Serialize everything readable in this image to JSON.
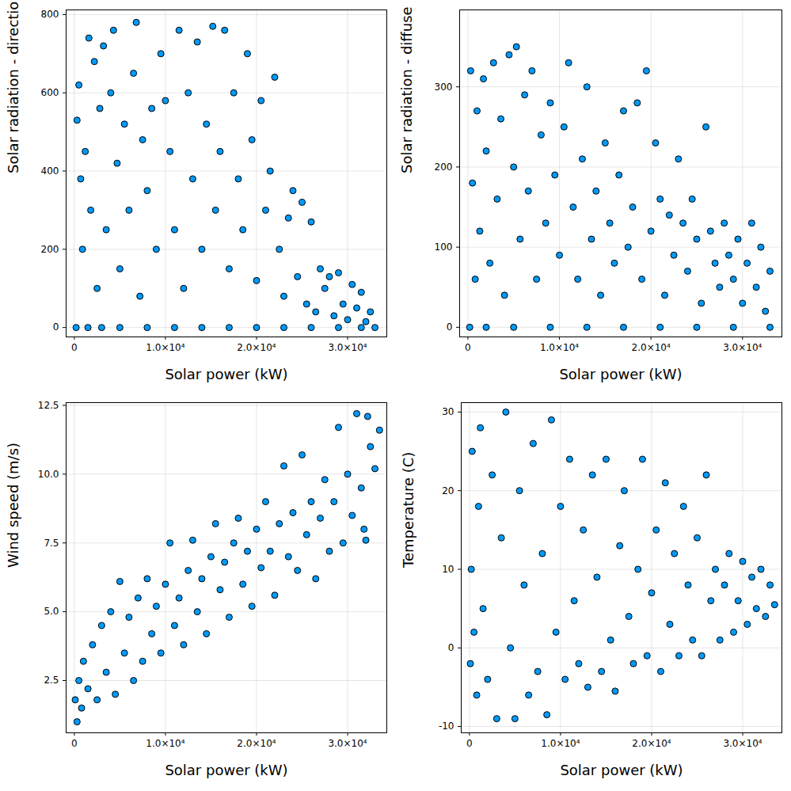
{
  "chart_data": [
    {
      "type": "scatter",
      "x_label": "Solar power (kW)",
      "y_label": "Solar radiation - directional",
      "color": "#009AFA",
      "marker": "circle",
      "grid": true,
      "xlim": [
        -900,
        34300
      ],
      "ylim": [
        -24,
        812
      ],
      "xticks": [
        0,
        {
          "value": 10000,
          "label": "1.0×10⁴"
        },
        {
          "value": 20000,
          "label": "2.0×10⁴"
        },
        {
          "value": 30000,
          "label": "3.0×10⁴"
        }
      ],
      "yticks": [
        0,
        200,
        400,
        600,
        800
      ],
      "x": [
        200,
        1500,
        3000,
        5000,
        8000,
        11000,
        14000,
        17000,
        20000,
        23000,
        26000,
        29000,
        31500,
        33000,
        300,
        500,
        700,
        900,
        1200,
        1600,
        1800,
        2200,
        2500,
        2800,
        3200,
        3500,
        4000,
        4300,
        4700,
        5000,
        5500,
        6000,
        6500,
        6800,
        7200,
        7500,
        8000,
        8500,
        9000,
        9500,
        10000,
        10500,
        11000,
        11500,
        12000,
        12500,
        13000,
        13500,
        14000,
        14500,
        15200,
        15500,
        16000,
        16500,
        17000,
        17500,
        18000,
        18500,
        19000,
        19500,
        20000,
        20500,
        21000,
        21500,
        22000,
        22500,
        23000,
        23500,
        24000,
        24500,
        25000,
        25500,
        26000,
        26500,
        27000,
        27500,
        28000,
        28500,
        29000,
        29500,
        30000,
        30500,
        31000,
        31500,
        32000,
        32500
      ],
      "values": [
        0,
        0,
        0,
        0,
        0,
        0,
        0,
        0,
        0,
        0,
        0,
        0,
        0,
        0,
        530,
        620,
        380,
        200,
        450,
        740,
        300,
        680,
        100,
        560,
        720,
        250,
        600,
        760,
        420,
        150,
        520,
        300,
        650,
        780,
        80,
        480,
        350,
        560,
        200,
        700,
        580,
        450,
        250,
        760,
        100,
        600,
        380,
        730,
        200,
        520,
        770,
        300,
        450,
        760,
        150,
        600,
        380,
        250,
        700,
        480,
        120,
        580,
        300,
        400,
        640,
        200,
        80,
        280,
        350,
        130,
        320,
        60,
        270,
        40,
        150,
        100,
        130,
        30,
        140,
        60,
        20,
        110,
        50,
        90,
        15,
        40
      ]
    },
    {
      "type": "scatter",
      "x_label": "Solar power (kW)",
      "y_label": "Solar radiation - diffuse",
      "color": "#009AFA",
      "marker": "circle",
      "grid": true,
      "xlim": [
        -900,
        34300
      ],
      "ylim": [
        -12,
        396
      ],
      "xticks": [
        0,
        {
          "value": 10000,
          "label": "1.0×10⁴"
        },
        {
          "value": 20000,
          "label": "2.0×10⁴"
        },
        {
          "value": 30000,
          "label": "3.0×10⁴"
        }
      ],
      "yticks": [
        0,
        100,
        200,
        300
      ],
      "x": [
        200,
        2000,
        5000,
        9000,
        13000,
        17000,
        21000,
        25000,
        29000,
        33000,
        300,
        500,
        800,
        1000,
        1300,
        1700,
        2000,
        2400,
        2800,
        3200,
        3600,
        4000,
        4500,
        5000,
        5300,
        5700,
        6200,
        6600,
        7000,
        7500,
        8000,
        8500,
        9000,
        9500,
        10000,
        10500,
        11000,
        11500,
        12000,
        12500,
        13000,
        13500,
        14000,
        14500,
        15000,
        15500,
        16000,
        16500,
        17000,
        17500,
        18000,
        18500,
        19000,
        19500,
        20000,
        20500,
        21000,
        21500,
        22000,
        22500,
        23000,
        23500,
        24000,
        24500,
        25000,
        25500,
        26000,
        26500,
        27000,
        27500,
        28000,
        28500,
        29000,
        29500,
        30000,
        30500,
        31000,
        31500,
        32000,
        32500,
        33000
      ],
      "values": [
        0,
        0,
        0,
        0,
        0,
        0,
        0,
        0,
        0,
        0,
        320,
        180,
        60,
        270,
        120,
        310,
        220,
        80,
        330,
        160,
        260,
        40,
        340,
        200,
        350,
        110,
        290,
        170,
        320,
        60,
        240,
        130,
        280,
        190,
        90,
        250,
        330,
        150,
        60,
        210,
        300,
        110,
        170,
        40,
        230,
        130,
        80,
        190,
        270,
        100,
        150,
        280,
        60,
        320,
        120,
        230,
        160,
        40,
        140,
        90,
        210,
        130,
        70,
        160,
        110,
        30,
        250,
        120,
        80,
        50,
        130,
        90,
        60,
        110,
        30,
        80,
        130,
        50,
        100,
        20,
        70
      ]
    },
    {
      "type": "scatter",
      "x_label": "Solar power (kW)",
      "y_label": "Wind speed (m/s)",
      "color": "#009AFA",
      "marker": "circle",
      "grid": true,
      "xlim": [
        -900,
        34300
      ],
      "ylim": [
        0.6,
        12.6
      ],
      "xticks": [
        0,
        {
          "value": 10000,
          "label": "1.0×10⁴"
        },
        {
          "value": 20000,
          "label": "2.0×10⁴"
        },
        {
          "value": 30000,
          "label": "3.0×10⁴"
        }
      ],
      "yticks": [
        2.5,
        {
          "value": 5,
          "label": "5.0"
        },
        7.5,
        {
          "value": 10,
          "label": "10.0"
        },
        12.5
      ],
      "x": [
        100,
        300,
        500,
        800,
        1000,
        1500,
        2000,
        2500,
        3000,
        3500,
        4000,
        4500,
        5000,
        5500,
        6000,
        6500,
        7000,
        7500,
        8000,
        8500,
        9000,
        9500,
        10000,
        10500,
        11000,
        11500,
        12000,
        12500,
        13000,
        13500,
        14000,
        14500,
        15000,
        15500,
        16000,
        16500,
        17000,
        17500,
        18000,
        18500,
        19000,
        19500,
        20000,
        20500,
        21000,
        21500,
        22000,
        22500,
        23000,
        23500,
        24000,
        24500,
        25000,
        25500,
        26000,
        26500,
        27000,
        27500,
        28000,
        28500,
        29000,
        29500,
        30000,
        30500,
        31000,
        31500,
        32000,
        32500,
        33000,
        33500,
        32200,
        31800
      ],
      "values": [
        1.8,
        1.0,
        2.5,
        1.5,
        3.2,
        2.2,
        3.8,
        1.8,
        4.5,
        2.8,
        5,
        2.0,
        6.1,
        3.5,
        4.8,
        2.5,
        5.5,
        3.2,
        6.2,
        4.2,
        5.2,
        3.5,
        6,
        7.5,
        4.5,
        5.5,
        3.8,
        6.5,
        7.6,
        5,
        6.2,
        4.2,
        7,
        8.2,
        5.8,
        6.8,
        4.8,
        7.5,
        8.4,
        6,
        7.2,
        5.2,
        8,
        6.6,
        9,
        7.2,
        5.6,
        8.2,
        10.3,
        7,
        8.6,
        6.5,
        10.7,
        7.8,
        9,
        6.2,
        8.4,
        9.8,
        7.2,
        9,
        11.7,
        7.5,
        10,
        8.5,
        12.2,
        9.5,
        7.6,
        11,
        10.2,
        11.6,
        12.1,
        8
      ]
    },
    {
      "type": "scatter",
      "x_label": "Solar power (kW)",
      "y_label": "Temperature (C)",
      "color": "#009AFA",
      "marker": "circle",
      "grid": true,
      "xlim": [
        -900,
        34300
      ],
      "ylim": [
        -10.8,
        31.2
      ],
      "xticks": [
        0,
        {
          "value": 10000,
          "label": "1.0×10⁴"
        },
        {
          "value": 20000,
          "label": "2.0×10⁴"
        },
        {
          "value": 30000,
          "label": "3.0×10⁴"
        }
      ],
      "yticks": [
        -10,
        0,
        10,
        20,
        30
      ],
      "x": [
        100,
        200,
        300,
        500,
        800,
        1000,
        1200,
        1500,
        2000,
        2500,
        3000,
        3500,
        4000,
        4500,
        5000,
        5500,
        6000,
        6500,
        7000,
        7500,
        8000,
        8500,
        9000,
        9500,
        10000,
        10500,
        11000,
        11500,
        12000,
        12500,
        13000,
        13500,
        14000,
        14500,
        15000,
        15500,
        16000,
        16500,
        17000,
        17500,
        18000,
        18500,
        19000,
        19500,
        20000,
        20500,
        21000,
        21500,
        22000,
        22500,
        23000,
        23500,
        24000,
        24500,
        25000,
        25500,
        26000,
        26500,
        27000,
        27500,
        28000,
        28500,
        29000,
        29500,
        30000,
        30500,
        31000,
        31500,
        32000,
        32500,
        33000,
        33500
      ],
      "values": [
        -2,
        10,
        25,
        2,
        -6,
        18,
        28,
        5,
        -4,
        22,
        -9,
        14,
        30,
        0,
        -9,
        20,
        8,
        -6,
        26,
        -3,
        12,
        -8.5,
        29,
        2,
        18,
        -4,
        24,
        6,
        -2,
        15,
        -5,
        22,
        9,
        -3,
        24,
        1,
        -5.5,
        13,
        20,
        4,
        -2,
        10,
        24,
        -1,
        7,
        15,
        -3,
        21,
        3,
        12,
        -1,
        18,
        8,
        1,
        14,
        -1,
        22,
        6,
        10,
        1,
        8,
        12,
        2,
        6,
        11,
        3,
        9,
        5,
        10,
        4,
        8,
        5.5
      ]
    }
  ]
}
